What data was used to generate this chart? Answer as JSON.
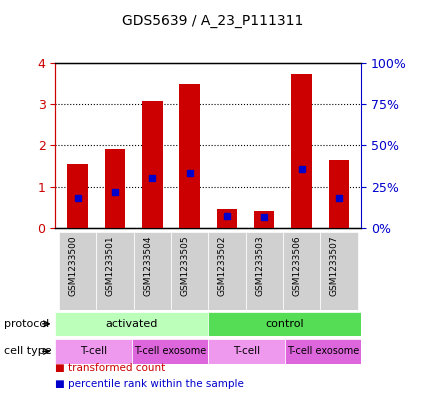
{
  "title": "GDS5639 / A_23_P111311",
  "samples": [
    "GSM1233500",
    "GSM1233501",
    "GSM1233504",
    "GSM1233505",
    "GSM1233502",
    "GSM1233503",
    "GSM1233506",
    "GSM1233507"
  ],
  "transformed_counts": [
    1.55,
    1.92,
    3.08,
    3.5,
    0.45,
    0.42,
    3.72,
    1.65
  ],
  "percentile_ranks": [
    0.72,
    0.88,
    1.22,
    1.32,
    0.28,
    0.26,
    1.42,
    0.72
  ],
  "bar_color": "#cc0000",
  "percentile_color": "#0000cc",
  "ylim": [
    0,
    4
  ],
  "yticks_left": [
    0,
    1,
    2,
    3,
    4
  ],
  "yticks_right": [
    0,
    25,
    50,
    75,
    100
  ],
  "grid_color": "black",
  "plot_bg": "#ffffff",
  "bar_width": 0.55,
  "protocol_groups": [
    {
      "label": "activated",
      "start": 0,
      "end": 3,
      "color": "#aaffaa"
    },
    {
      "label": "control",
      "start": 4,
      "end": 7,
      "color": "#44dd44"
    }
  ],
  "cell_type_groups": [
    {
      "label": "T-cell",
      "start": 0,
      "end": 1,
      "color": "#ee88ee"
    },
    {
      "label": "T-cell exosome",
      "start": 2,
      "end": 3,
      "color": "#dd55dd"
    },
    {
      "label": "T-cell",
      "start": 4,
      "end": 5,
      "color": "#ee88ee"
    },
    {
      "label": "T-cell exosome",
      "start": 6,
      "end": 7,
      "color": "#dd55dd"
    }
  ],
  "legend_items": [
    {
      "label": "transformed count",
      "color": "#cc0000"
    },
    {
      "label": "percentile rank within the sample",
      "color": "#0000cc"
    }
  ],
  "tick_label_gray": "#b0b0b0",
  "xticklabel_bg": "#d0d0d0",
  "label_protocol": "protocol",
  "label_cell_type": "cell type",
  "right_axis_color": "#0000cc",
  "left_axis_color": "#cc0000",
  "right_axis_label": "%",
  "right_ticks_labels": [
    "0%",
    "25%",
    "50%",
    "75%",
    "100%"
  ]
}
